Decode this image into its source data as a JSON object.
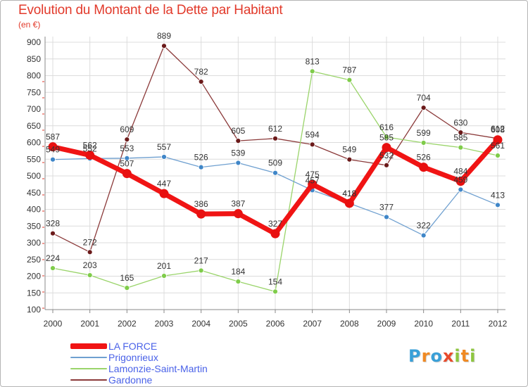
{
  "title": "Evolution du Montant de la Dette par Habitant",
  "subtitle": "(en €)",
  "logo": {
    "letters": [
      {
        "ch": "P",
        "color": "#3aa0d8"
      },
      {
        "ch": "r",
        "color": "#f08a24"
      },
      {
        "ch": "o",
        "color": "#3aa0d8"
      },
      {
        "ch": "x",
        "color": "#e84a2b"
      },
      {
        "ch": "i",
        "color": "#8ec63f"
      },
      {
        "ch": "t",
        "color": "#f08a24"
      },
      {
        "ch": "i",
        "color": "#8ec63f"
      }
    ]
  },
  "chart_data": {
    "type": "line",
    "x": [
      "2000",
      "2001",
      "2002",
      "2003",
      "2004",
      "2005",
      "2006",
      "2007",
      "2008",
      "2009",
      "2010",
      "2011",
      "2012"
    ],
    "ylim": [
      100,
      900
    ],
    "yticks": [
      100,
      150,
      200,
      250,
      300,
      350,
      400,
      450,
      500,
      550,
      600,
      650,
      700,
      750,
      800,
      850,
      900
    ],
    "grid": true,
    "legend_position": "bottom-left",
    "series": [
      {
        "name": "Gardonne",
        "color": "#8b3a3a",
        "marker": "#6b1a1a",
        "width": 1.3,
        "values": [
          328,
          272,
          609,
          889,
          782,
          605,
          612,
          594,
          549,
          532,
          704,
          630,
          612
        ]
      },
      {
        "name": "Lamonzie-Saint-Martin",
        "color": "#9ad46a",
        "marker": "#7fcc4a",
        "width": 1.3,
        "values": [
          224,
          203,
          165,
          201,
          217,
          184,
          154,
          813,
          787,
          616,
          599,
          585,
          561
        ]
      },
      {
        "name": "Prigonrieux",
        "color": "#6fa0d0",
        "marker": "#3f86c8",
        "width": 1.3,
        "values": [
          549,
          552,
          553,
          557,
          526,
          539,
          509,
          457,
          418,
          377,
          322,
          459,
          413
        ]
      },
      {
        "name": "LA FORCE",
        "color": "#f01414",
        "marker": "#e81010",
        "width": 7,
        "values": [
          587,
          562,
          507,
          447,
          386,
          387,
          327,
          475,
          418,
          585,
          526,
          484,
          608
        ]
      }
    ],
    "legend_order": [
      "LA FORCE",
      "Prigonrieux",
      "Lamonzie-Saint-Martin",
      "Gardonne"
    ]
  }
}
